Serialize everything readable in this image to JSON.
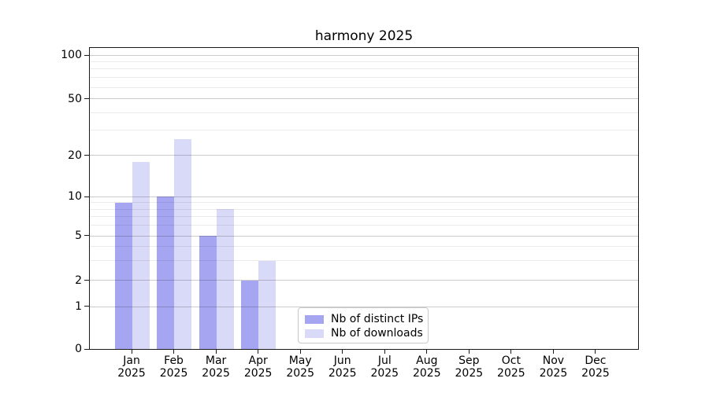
{
  "chart_data": {
    "type": "bar",
    "title": "harmony 2025",
    "categories": [
      {
        "month": "Jan",
        "year": "2025"
      },
      {
        "month": "Feb",
        "year": "2025"
      },
      {
        "month": "Mar",
        "year": "2025"
      },
      {
        "month": "Apr",
        "year": "2025"
      },
      {
        "month": "May",
        "year": "2025"
      },
      {
        "month": "Jun",
        "year": "2025"
      },
      {
        "month": "Jul",
        "year": "2025"
      },
      {
        "month": "Aug",
        "year": "2025"
      },
      {
        "month": "Sep",
        "year": "2025"
      },
      {
        "month": "Oct",
        "year": "2025"
      },
      {
        "month": "Nov",
        "year": "2025"
      },
      {
        "month": "Dec",
        "year": "2025"
      }
    ],
    "series": [
      {
        "name": "Nb of distinct IPs",
        "color": "#a5a5f1",
        "values": [
          9,
          10,
          5,
          2,
          0,
          0,
          0,
          0,
          0,
          0,
          0,
          0
        ]
      },
      {
        "name": "Nb of downloads",
        "color": "#d9d9f8",
        "values": [
          18,
          26,
          8,
          3,
          0,
          0,
          0,
          0,
          0,
          0,
          0,
          0
        ]
      }
    ],
    "xlabel": "",
    "ylabel": "",
    "y_axis": {
      "scale": "log-like",
      "ticks": [
        0,
        1,
        2,
        5,
        10,
        20,
        50,
        100
      ],
      "minor_gridlines": [
        3,
        4,
        6,
        7,
        8,
        9,
        30,
        40,
        60,
        70,
        80,
        90
      ]
    },
    "grid": "horizontal",
    "legend_position": "inside-bottom-center"
  }
}
